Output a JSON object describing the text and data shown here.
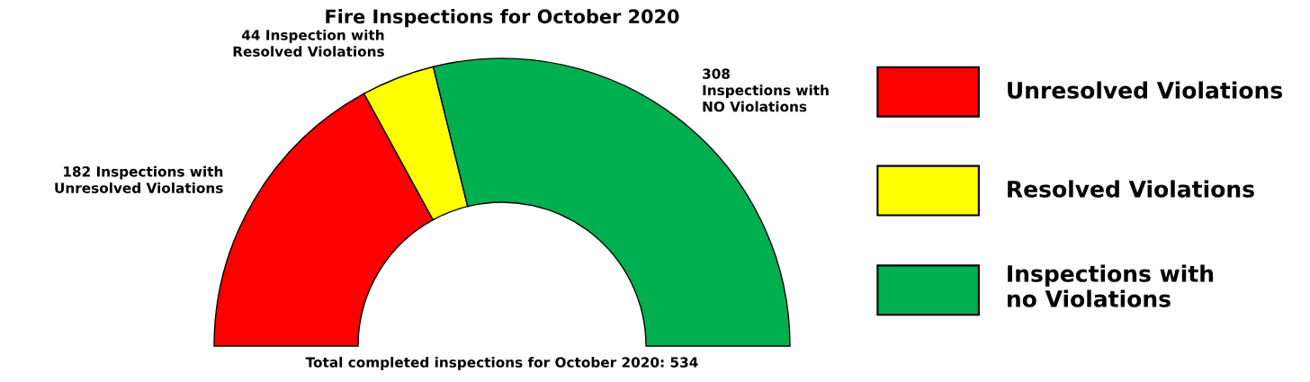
{
  "chart_data": {
    "type": "donut",
    "title": "Fire Inspections for October 2020",
    "categories": [
      "Unresolved Violations",
      "Resolved Violations",
      "Inspections with\nno Violations"
    ],
    "values": [
      182,
      44,
      308
    ],
    "colors": [
      "#ff0000",
      "#ffff00",
      "#00b050"
    ],
    "value_labels": [
      "182 Inspections with\nUnresolved Violations",
      "44 Inspection with\nResolved Violations",
      "308\nInspections with\nNO Violations"
    ],
    "annotations": [
      "Total completed inspections for October 2020: 534"
    ],
    "legend": "right"
  }
}
